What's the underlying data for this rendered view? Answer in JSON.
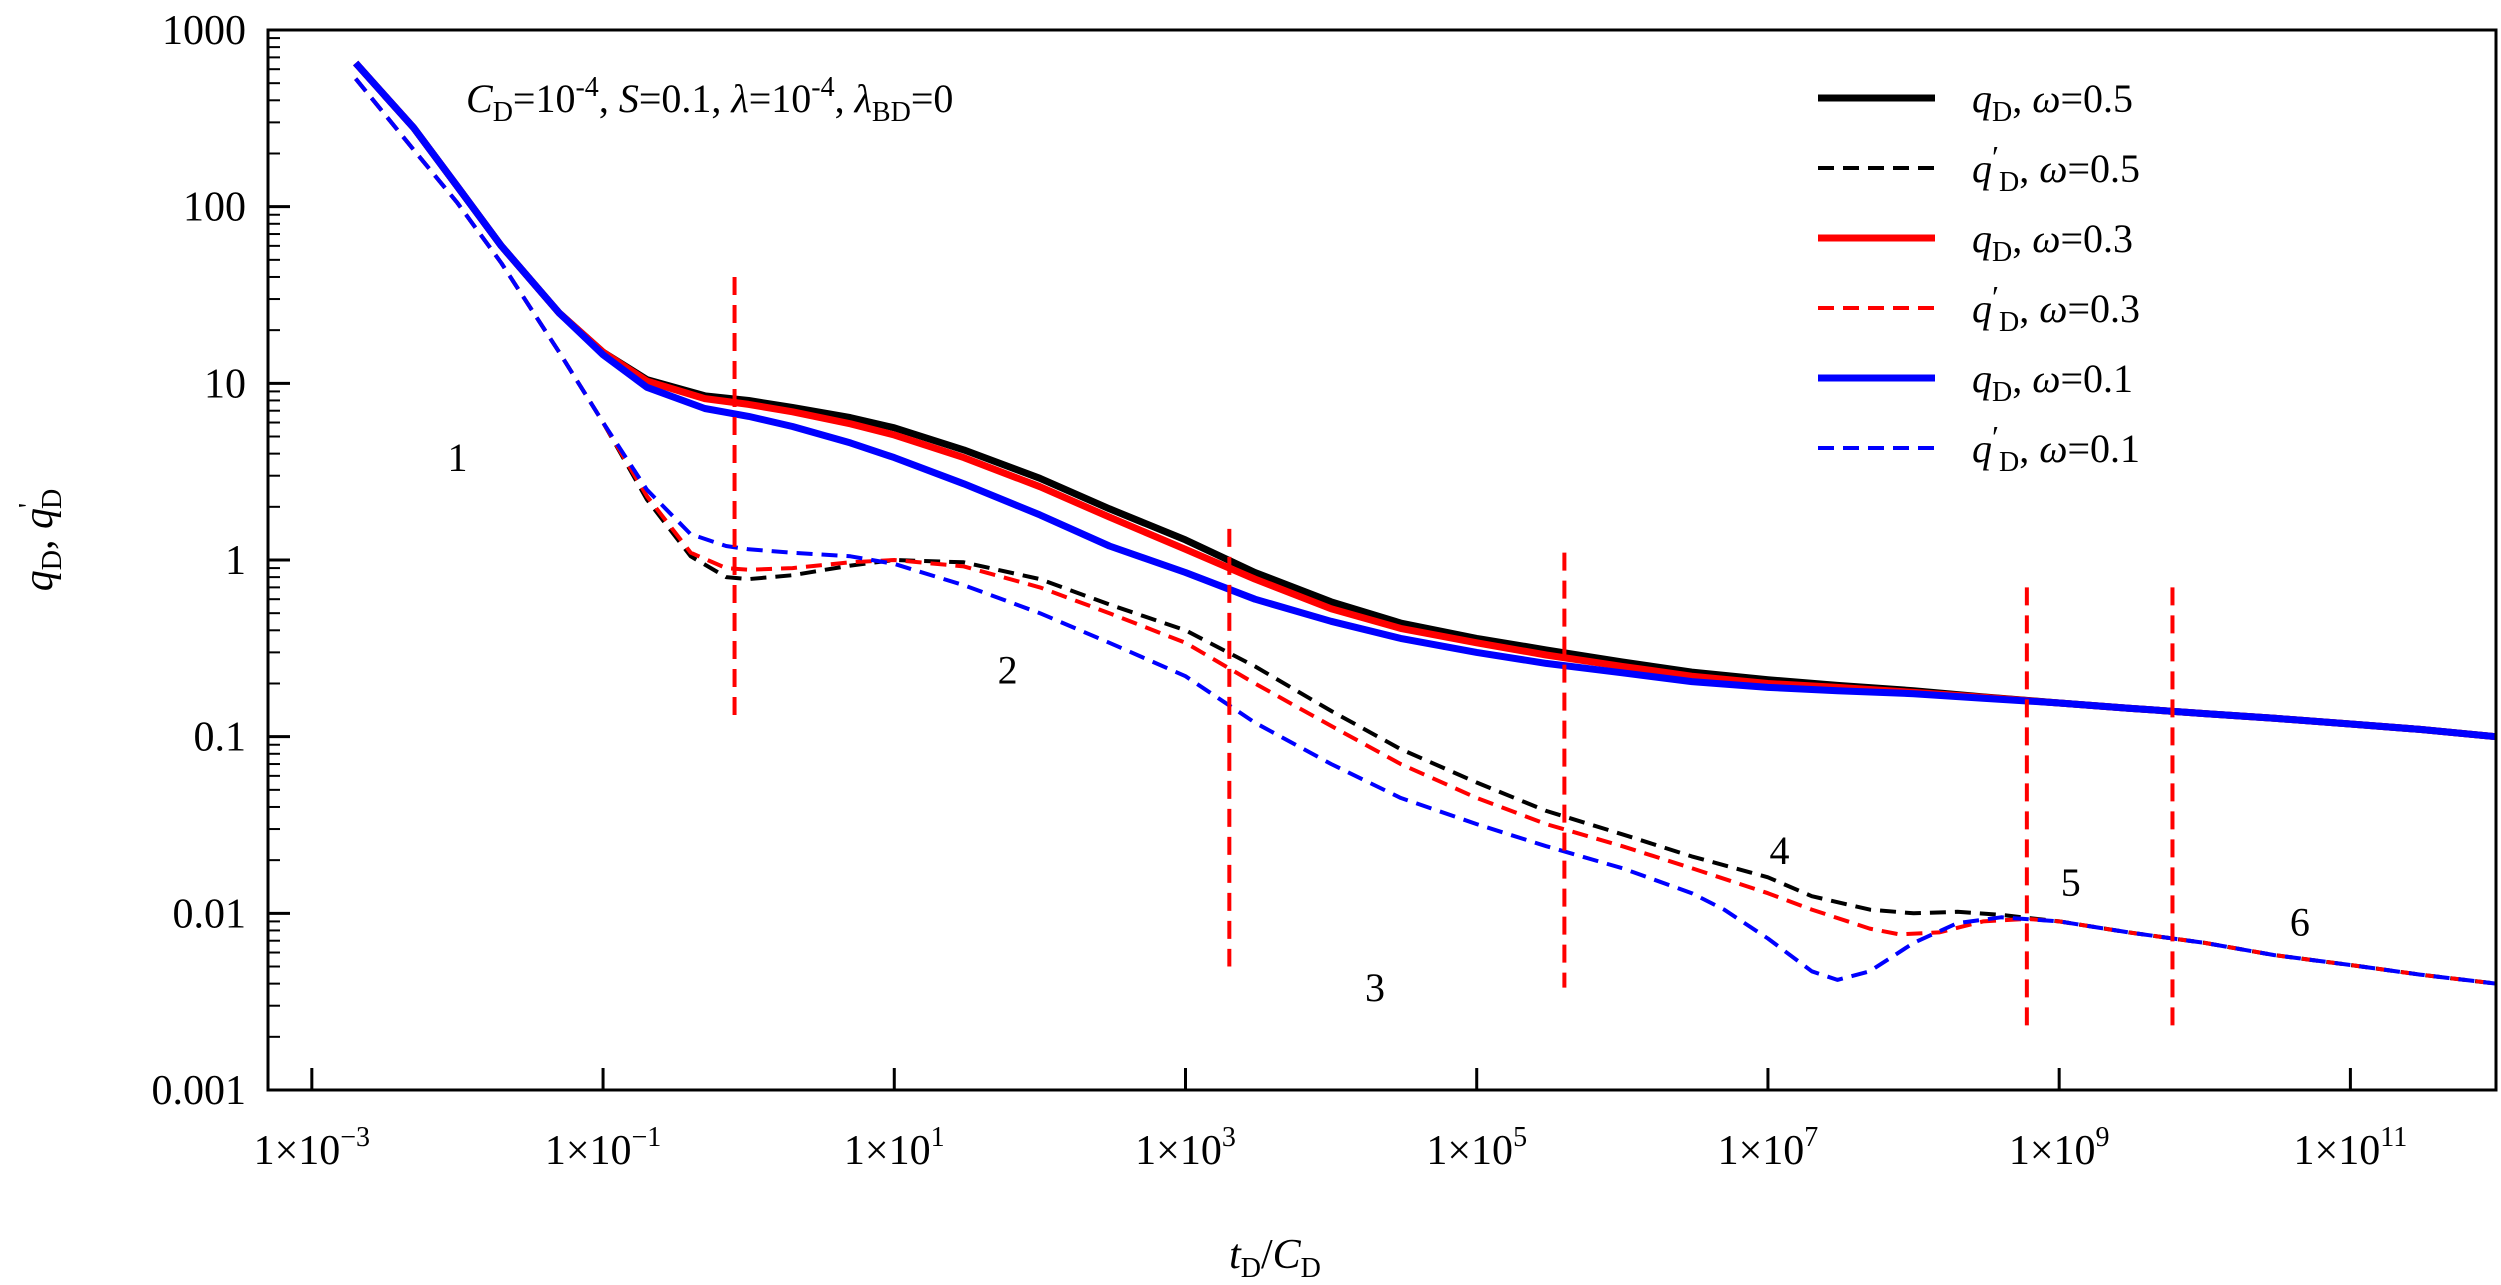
{
  "chart_data": {
    "type": "line",
    "x_scale": "log",
    "y_scale": "log",
    "xlim": [
      0.0005,
      1000000000000.0
    ],
    "ylim": [
      0.001,
      1000
    ],
    "x_ticks": [
      0.001,
      0.1,
      10,
      1000,
      100000,
      10000000,
      1000000000,
      100000000000
    ],
    "x_tick_labels": [
      {
        "base": "1×10",
        "exp": "−3"
      },
      {
        "base": "1×10",
        "exp": "−1"
      },
      {
        "base": "1×10",
        "exp": "1"
      },
      {
        "base": "1×10",
        "exp": "3"
      },
      {
        "base": "1×10",
        "exp": "5"
      },
      {
        "base": "1×10",
        "exp": "7"
      },
      {
        "base": "1×10",
        "exp": "9"
      },
      {
        "base": "1×10",
        "exp": "11"
      }
    ],
    "y_ticks": [
      1000,
      100,
      10,
      1,
      0.1,
      0.01,
      0.001
    ],
    "y_tick_labels": [
      "1000",
      "100",
      "10",
      "1",
      "0.1",
      "0.01",
      "0.001"
    ],
    "xlabel": {
      "t": "t",
      "t_sub": "D",
      "slash": "/",
      "c": "C",
      "c_sub": "D"
    },
    "ylabel": {
      "q": "q",
      "q_sub": "D",
      "sep": ", ",
      "qp": "q",
      "qp_prime": "'",
      "qp_sub": "D"
    },
    "annotation": {
      "parts": [
        {
          "text": "C",
          "style": "italic"
        },
        {
          "text": "D",
          "style": "sub"
        },
        {
          "text": "=10",
          "style": "normal"
        },
        {
          "text": "-4",
          "style": "sup"
        },
        {
          "text": ", ",
          "style": "normal"
        },
        {
          "text": "S",
          "style": "italic"
        },
        {
          "text": "=0.1, ",
          "style": "normal"
        },
        {
          "text": "λ",
          "style": "italic"
        },
        {
          "text": "=10",
          "style": "normal"
        },
        {
          "text": "-4",
          "style": "sup"
        },
        {
          "text": ", ",
          "style": "normal"
        },
        {
          "text": "λ",
          "style": "italic"
        },
        {
          "text": "BD",
          "style": "sub"
        },
        {
          "text": "=0",
          "style": "normal"
        }
      ]
    },
    "boundaries": [
      {
        "x": 0.8,
        "y_range": [
          0.13,
          40
        ]
      },
      {
        "x": 2000,
        "y_range": [
          0.005,
          1.5
        ]
      },
      {
        "x": 400000,
        "y_range": [
          0.0038,
          1.1
        ]
      },
      {
        "x": 600000000,
        "y_range": [
          0.0022,
          0.7
        ]
      },
      {
        "x": 6000000000,
        "y_range": [
          0.0022,
          0.7
        ]
      }
    ],
    "regions": [
      {
        "label": "1",
        "x": 0.01,
        "y": 3.2
      },
      {
        "label": "2",
        "x": 60,
        "y": 0.2
      },
      {
        "label": "3",
        "x": 20000,
        "y": 0.0032
      },
      {
        "label": "4",
        "x": 12000000,
        "y": 0.019
      },
      {
        "label": "5",
        "x": 1200000000,
        "y": 0.0125
      },
      {
        "label": "6",
        "x": 45000000000,
        "y": 0.0075
      }
    ],
    "series": [
      {
        "name": "qD, ω=0.5",
        "var": "q",
        "prime": false,
        "omega": "ω=0.5",
        "color": "#000000",
        "dash": false,
        "points": [
          [
            0.002,
            650
          ],
          [
            0.005,
            280
          ],
          [
            0.01,
            130
          ],
          [
            0.02,
            60
          ],
          [
            0.05,
            25
          ],
          [
            0.1,
            15
          ],
          [
            0.2,
            10.5
          ],
          [
            0.5,
            8.5
          ],
          [
            1,
            8
          ],
          [
            2,
            7.3
          ],
          [
            5,
            6.4
          ],
          [
            10,
            5.6
          ],
          [
            30,
            4.2
          ],
          [
            100,
            2.9
          ],
          [
            300,
            1.95
          ],
          [
            1000,
            1.3
          ],
          [
            3000,
            0.85
          ],
          [
            10000,
            0.58
          ],
          [
            30000,
            0.44
          ],
          [
            100000,
            0.36
          ],
          [
            300000,
            0.31
          ],
          [
            1000000,
            0.265
          ],
          [
            3000000,
            0.232
          ],
          [
            10000000,
            0.21
          ],
          [
            30000000,
            0.195
          ],
          [
            100000000,
            0.182
          ],
          [
            300000000,
            0.168
          ],
          [
            1000000000,
            0.155
          ],
          [
            3000000000,
            0.145
          ],
          [
            10000000000,
            0.135
          ],
          [
            30000000000,
            0.127
          ],
          [
            100000000000,
            0.118
          ],
          [
            300000000000,
            0.11
          ],
          [
            1000000000000,
            0.1
          ]
        ]
      },
      {
        "name": "q'D, ω=0.5",
        "var": "q",
        "prime": true,
        "omega": "ω=0.5",
        "color": "#000000",
        "dash": true,
        "points": [
          [
            0.002,
            530
          ],
          [
            0.005,
            210
          ],
          [
            0.01,
            105
          ],
          [
            0.02,
            48
          ],
          [
            0.05,
            15
          ],
          [
            0.1,
            6
          ],
          [
            0.2,
            2.2
          ],
          [
            0.4,
            1.05
          ],
          [
            0.7,
            0.8
          ],
          [
            1,
            0.78
          ],
          [
            2,
            0.82
          ],
          [
            5,
            0.93
          ],
          [
            10,
            1.0
          ],
          [
            30,
            0.97
          ],
          [
            100,
            0.78
          ],
          [
            300,
            0.56
          ],
          [
            1000,
            0.4
          ],
          [
            3000,
            0.25
          ],
          [
            10000,
            0.14
          ],
          [
            30000,
            0.085
          ],
          [
            100000,
            0.055
          ],
          [
            300000,
            0.038
          ],
          [
            1000000,
            0.028
          ],
          [
            3000000,
            0.021
          ],
          [
            10000000,
            0.016
          ],
          [
            20000000,
            0.0125
          ],
          [
            50000000,
            0.0105
          ],
          [
            100000000,
            0.01
          ],
          [
            200000000,
            0.0102
          ],
          [
            400000000,
            0.0098
          ],
          [
            1000000000,
            0.009
          ],
          [
            3000000000,
            0.0078
          ],
          [
            10000000000,
            0.0068
          ],
          [
            30000000000,
            0.0058
          ],
          [
            100000000000,
            0.0051
          ],
          [
            300000000000,
            0.0045
          ],
          [
            1000000000000,
            0.004
          ]
        ]
      },
      {
        "name": "qD, ω=0.3",
        "var": "q",
        "prime": false,
        "omega": "ω=0.3",
        "color": "#ff0000",
        "dash": false,
        "points": [
          [
            0.002,
            650
          ],
          [
            0.005,
            280
          ],
          [
            0.01,
            130
          ],
          [
            0.02,
            60
          ],
          [
            0.05,
            25
          ],
          [
            0.1,
            15
          ],
          [
            0.2,
            10.3
          ],
          [
            0.5,
            8.2
          ],
          [
            1,
            7.6
          ],
          [
            2,
            6.9
          ],
          [
            5,
            5.9
          ],
          [
            10,
            5.1
          ],
          [
            30,
            3.8
          ],
          [
            100,
            2.6
          ],
          [
            300,
            1.75
          ],
          [
            1000,
            1.15
          ],
          [
            3000,
            0.78
          ],
          [
            10000,
            0.53
          ],
          [
            30000,
            0.41
          ],
          [
            100000,
            0.34
          ],
          [
            300000,
            0.29
          ],
          [
            1000000,
            0.25
          ],
          [
            3000000,
            0.22
          ],
          [
            10000000,
            0.2
          ],
          [
            30000000,
            0.19
          ],
          [
            100000000,
            0.178
          ],
          [
            300000000,
            0.167
          ],
          [
            1000000000,
            0.155
          ],
          [
            3000000000,
            0.145
          ],
          [
            10000000000,
            0.135
          ],
          [
            30000000000,
            0.127
          ],
          [
            100000000000,
            0.118
          ],
          [
            300000000000,
            0.11
          ],
          [
            1000000000000,
            0.1
          ]
        ]
      },
      {
        "name": "q'D, ω=0.3",
        "var": "q",
        "prime": true,
        "omega": "ω=0.3",
        "color": "#ff0000",
        "dash": true,
        "points": [
          [
            0.002,
            530
          ],
          [
            0.005,
            210
          ],
          [
            0.01,
            105
          ],
          [
            0.02,
            48
          ],
          [
            0.05,
            15
          ],
          [
            0.1,
            6
          ],
          [
            0.2,
            2.3
          ],
          [
            0.4,
            1.1
          ],
          [
            0.7,
            0.9
          ],
          [
            1,
            0.88
          ],
          [
            2,
            0.9
          ],
          [
            5,
            0.97
          ],
          [
            10,
            1.0
          ],
          [
            30,
            0.92
          ],
          [
            100,
            0.7
          ],
          [
            300,
            0.5
          ],
          [
            1000,
            0.34
          ],
          [
            3000,
            0.2
          ],
          [
            10000,
            0.115
          ],
          [
            30000,
            0.07
          ],
          [
            100000,
            0.045
          ],
          [
            300000,
            0.032
          ],
          [
            1000000,
            0.024
          ],
          [
            3000000,
            0.018
          ],
          [
            10000000,
            0.013
          ],
          [
            20000000,
            0.0105
          ],
          [
            50000000,
            0.0082
          ],
          [
            80000000,
            0.0076
          ],
          [
            150000000,
            0.0078
          ],
          [
            300000000,
            0.009
          ],
          [
            600000000,
            0.0093
          ],
          [
            1000000000,
            0.009
          ],
          [
            3000000000,
            0.0078
          ],
          [
            10000000000,
            0.0068
          ],
          [
            30000000000,
            0.0058
          ],
          [
            100000000000,
            0.0051
          ],
          [
            300000000000,
            0.0045
          ],
          [
            1000000000000,
            0.004
          ]
        ]
      },
      {
        "name": "qD, ω=0.1",
        "var": "q",
        "prime": false,
        "omega": "ω=0.1",
        "color": "#0000ff",
        "dash": false,
        "points": [
          [
            0.002,
            650
          ],
          [
            0.005,
            280
          ],
          [
            0.01,
            130
          ],
          [
            0.02,
            60
          ],
          [
            0.05,
            25
          ],
          [
            0.1,
            14.5
          ],
          [
            0.2,
            9.5
          ],
          [
            0.5,
            7.2
          ],
          [
            1,
            6.5
          ],
          [
            2,
            5.7
          ],
          [
            5,
            4.6
          ],
          [
            10,
            3.8
          ],
          [
            30,
            2.7
          ],
          [
            100,
            1.8
          ],
          [
            300,
            1.2
          ],
          [
            1000,
            0.85
          ],
          [
            3000,
            0.6
          ],
          [
            10000,
            0.45
          ],
          [
            30000,
            0.36
          ],
          [
            100000,
            0.3
          ],
          [
            300000,
            0.26
          ],
          [
            1000000,
            0.23
          ],
          [
            3000000,
            0.205
          ],
          [
            10000000,
            0.19
          ],
          [
            30000000,
            0.182
          ],
          [
            100000000,
            0.175
          ],
          [
            300000000,
            0.165
          ],
          [
            1000000000,
            0.155
          ],
          [
            3000000000,
            0.145
          ],
          [
            10000000000,
            0.135
          ],
          [
            30000000000,
            0.127
          ],
          [
            100000000000,
            0.118
          ],
          [
            300000000000,
            0.11
          ],
          [
            1000000000000,
            0.1
          ]
        ]
      },
      {
        "name": "q'D, ω=0.1",
        "var": "q",
        "prime": true,
        "omega": "ω=0.1",
        "color": "#0000ff",
        "dash": true,
        "points": [
          [
            0.002,
            530
          ],
          [
            0.005,
            210
          ],
          [
            0.01,
            105
          ],
          [
            0.02,
            48
          ],
          [
            0.05,
            15
          ],
          [
            0.1,
            6
          ],
          [
            0.2,
            2.5
          ],
          [
            0.4,
            1.4
          ],
          [
            0.7,
            1.2
          ],
          [
            1,
            1.15
          ],
          [
            2,
            1.1
          ],
          [
            5,
            1.05
          ],
          [
            10,
            0.95
          ],
          [
            30,
            0.72
          ],
          [
            100,
            0.5
          ],
          [
            300,
            0.34
          ],
          [
            1000,
            0.22
          ],
          [
            3000,
            0.12
          ],
          [
            10000,
            0.07
          ],
          [
            30000,
            0.045
          ],
          [
            100000,
            0.032
          ],
          [
            300000,
            0.024
          ],
          [
            1000000,
            0.018
          ],
          [
            3000000,
            0.013
          ],
          [
            5000000,
            0.0105
          ],
          [
            10000000,
            0.0072
          ],
          [
            20000000,
            0.0047
          ],
          [
            30000000,
            0.0042
          ],
          [
            50000000,
            0.0047
          ],
          [
            100000000,
            0.0068
          ],
          [
            200000000,
            0.0088
          ],
          [
            400000000,
            0.0095
          ],
          [
            1000000000,
            0.009
          ],
          [
            3000000000,
            0.0078
          ],
          [
            10000000000,
            0.0068
          ],
          [
            30000000000,
            0.0058
          ],
          [
            100000000000,
            0.0051
          ],
          [
            300000000000,
            0.0045
          ],
          [
            1000000000000,
            0.004
          ]
        ]
      }
    ]
  }
}
